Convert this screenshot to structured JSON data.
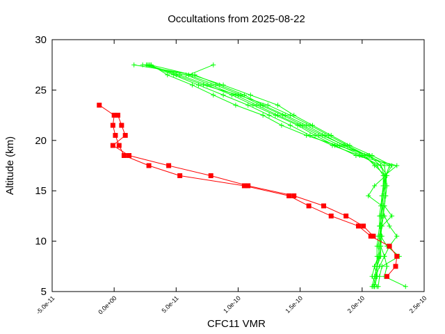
{
  "chart_data": {
    "type": "line",
    "title": "Occultations from 2025-08-22",
    "xlabel": "CFC11 VMR",
    "ylabel": "Altitude (km)",
    "xlim": [
      -5e-11,
      2.5e-10
    ],
    "ylim": [
      5,
      30
    ],
    "x_ticks": [
      -5e-11,
      0.0,
      5e-11,
      1e-10,
      1.5e-10,
      2e-10,
      2.5e-10
    ],
    "x_tick_labels": [
      "-5.0e-11",
      "0.0e+00",
      "5.0e-11",
      "1.0e-10",
      "1.5e-10",
      "2.0e-10",
      "2.5e-10"
    ],
    "y_ticks": [
      5,
      10,
      15,
      20,
      25,
      30
    ],
    "y_tick_labels": [
      "5",
      "10",
      "15",
      "20",
      "25",
      "30"
    ],
    "grid": false,
    "series": [
      {
        "color": "#00ff00",
        "marker": "plus",
        "profiles": [
          [
            [
              2.1e-10,
              5.5
            ],
            [
              2.12e-10,
              6.5
            ],
            [
              2.1e-10,
              7.5
            ],
            [
              2.14e-10,
              8.5
            ],
            [
              2.13e-10,
              9.5
            ],
            [
              2.14e-10,
              10.5
            ],
            [
              2.15e-10,
              11.5
            ],
            [
              2.15e-10,
              12.5
            ],
            [
              2.16e-10,
              13.5
            ],
            [
              2.16e-10,
              14.5
            ],
            [
              2.17e-10,
              15.5
            ],
            [
              2.18e-10,
              16.5
            ],
            [
              2.15e-10,
              17.5
            ],
            [
              2.05e-10,
              18.5
            ],
            [
              1.85e-10,
              19.5
            ],
            [
              1.7e-10,
              20.5
            ],
            [
              1.55e-10,
              21.5
            ],
            [
              1.38e-10,
              22.5
            ],
            [
              1.2e-10,
              23.5
            ],
            [
              1.05e-10,
              24.5
            ],
            [
              8.5e-11,
              25.5
            ],
            [
              6.5e-11,
              26.5
            ],
            [
              1.6e-11,
              27.5
            ]
          ],
          [
            [
              2.35e-10,
              5.5
            ],
            [
              2.18e-10,
              6.5
            ],
            [
              2.2e-10,
              7.5
            ],
            [
              2.18e-10,
              8.5
            ],
            [
              2.15e-10,
              9.5
            ],
            [
              2.16e-10,
              10.5
            ],
            [
              2.14e-10,
              11.5
            ],
            [
              2.14e-10,
              12.5
            ],
            [
              2.15e-10,
              13.5
            ],
            [
              2.16e-10,
              14.5
            ],
            [
              2.17e-10,
              15.5
            ],
            [
              2.17e-10,
              16.5
            ],
            [
              2.12e-10,
              17.5
            ],
            [
              2e-10,
              18.5
            ],
            [
              1.82e-10,
              19.5
            ],
            [
              1.65e-10,
              20.5
            ],
            [
              1.5e-10,
              21.5
            ],
            [
              1.32e-10,
              22.5
            ],
            [
              1.15e-10,
              23.5
            ],
            [
              9.8e-11,
              24.5
            ],
            [
              7.8e-11,
              25.5
            ],
            [
              5.8e-11,
              26.5
            ],
            [
              2.3e-11,
              27.5
            ]
          ],
          [
            [
              2.08e-10,
              5.5
            ],
            [
              2.1e-10,
              6.5
            ],
            [
              2.12e-10,
              7.5
            ],
            [
              2.12e-10,
              8.5
            ],
            [
              2.12e-10,
              9.5
            ],
            [
              2.13e-10,
              10.5
            ],
            [
              2.14e-10,
              11.5
            ],
            [
              2.16e-10,
              12.5
            ],
            [
              2.16e-10,
              13.5
            ],
            [
              2.16e-10,
              14.5
            ],
            [
              2.18e-10,
              15.5
            ],
            [
              2.18e-10,
              16.5
            ],
            [
              2.28e-10,
              17.5
            ],
            [
              1.95e-10,
              18.5
            ],
            [
              1.78e-10,
              19.5
            ],
            [
              1.62e-10,
              20.5
            ],
            [
              1.48e-10,
              21.5
            ],
            [
              1.3e-10,
              22.5
            ],
            [
              1.12e-10,
              23.5
            ],
            [
              9.5e-11,
              24.5
            ],
            [
              7.5e-11,
              25.5
            ],
            [
              5.3e-11,
              26.5
            ],
            [
              2.7e-11,
              27.5
            ]
          ],
          [
            [
              2.1e-10,
              5.5
            ],
            [
              2.12e-10,
              6.5
            ],
            [
              2.12e-10,
              7.5
            ],
            [
              2.15e-10,
              8.5
            ],
            [
              2.15e-10,
              9.5
            ],
            [
              2.14e-10,
              10.5
            ],
            [
              2.16e-10,
              11.5
            ],
            [
              2.24e-10,
              12.5
            ],
            [
              2.18e-10,
              13.5
            ],
            [
              2.19e-10,
              14.5
            ],
            [
              2.18e-10,
              15.5
            ],
            [
              2.2e-10,
              16.5
            ],
            [
              2.15e-10,
              17.5
            ],
            [
              1.98e-10,
              18.5
            ],
            [
              1.76e-10,
              19.5
            ],
            [
              1.58e-10,
              20.5
            ],
            [
              1.42e-10,
              21.5
            ],
            [
              1.25e-10,
              22.5
            ],
            [
              1.08e-10,
              23.5
            ],
            [
              8.8e-11,
              24.5
            ],
            [
              6.8e-11,
              25.5
            ],
            [
              4.8e-11,
              26.5
            ],
            [
              2.6e-11,
              27.5
            ]
          ],
          [
            [
              2.13e-10,
              5.5
            ],
            [
              2.14e-10,
              6.5
            ],
            [
              2.16e-10,
              7.5
            ],
            [
              2.3e-10,
              8.5
            ],
            [
              2.2e-10,
              9.5
            ],
            [
              2.15e-10,
              10.5
            ],
            [
              2.15e-10,
              11.5
            ],
            [
              2.17e-10,
              12.5
            ],
            [
              2.18e-10,
              13.5
            ],
            [
              2.19e-10,
              14.5
            ],
            [
              2.2e-10,
              15.5
            ],
            [
              2.19e-10,
              16.5
            ],
            [
              2.22e-10,
              17.5
            ],
            [
              2.04e-10,
              18.5
            ],
            [
              1.88e-10,
              19.5
            ],
            [
              1.73e-10,
              20.5
            ],
            [
              1.58e-10,
              21.5
            ],
            [
              1.42e-10,
              22.5
            ],
            [
              1.24e-10,
              23.5
            ],
            [
              1e-10,
              24.5
            ],
            [
              7.2e-11,
              25.5
            ],
            [
              5e-11,
              26.5
            ],
            [
              2.8e-11,
              27.5
            ]
          ],
          [
            [
              2.09e-10,
              5.5
            ],
            [
              2.11e-10,
              6.5
            ],
            [
              2.14e-10,
              7.5
            ],
            [
              2.18e-10,
              8.5
            ],
            [
              2.22e-10,
              9.5
            ],
            [
              2.28e-10,
              10.5
            ],
            [
              2.22e-10,
              11.5
            ],
            [
              2.18e-10,
              12.5
            ],
            [
              2.16e-10,
              13.5
            ],
            [
              2.05e-10,
              14.5
            ],
            [
              2.1e-10,
              15.5
            ],
            [
              2.19e-10,
              16.5
            ],
            [
              2.24e-10,
              17.5
            ],
            [
              2.08e-10,
              18.5
            ],
            [
              1.9e-10,
              19.5
            ],
            [
              1.75e-10,
              20.5
            ],
            [
              1.6e-10,
              21.5
            ],
            [
              1.45e-10,
              22.5
            ],
            [
              1.32e-10,
              23.5
            ],
            [
              1.1e-10,
              24.5
            ],
            [
              8.8e-11,
              25.5
            ],
            [
              6.3e-11,
              26.5
            ],
            [
              2.9e-11,
              27.5
            ]
          ],
          [
            [
              2.12e-10,
              5.5
            ],
            [
              2.08e-10,
              6.5
            ],
            [
              2.1e-10,
              7.5
            ],
            [
              2.13e-10,
              8.5
            ],
            [
              2.14e-10,
              9.5
            ],
            [
              2.15e-10,
              10.5
            ],
            [
              2.15e-10,
              11.5
            ],
            [
              2.15e-10,
              12.5
            ],
            [
              2.16e-10,
              13.5
            ],
            [
              2.17e-10,
              14.5
            ],
            [
              2.18e-10,
              15.5
            ],
            [
              2.19e-10,
              16.5
            ],
            [
              2.18e-10,
              17.5
            ],
            [
              2.06e-10,
              18.5
            ],
            [
              1.8e-10,
              19.5
            ],
            [
              1.55e-10,
              20.5
            ],
            [
              1.35e-10,
              21.5
            ],
            [
              1.2e-10,
              22.5
            ],
            [
              9.8e-11,
              23.5
            ],
            [
              8e-11,
              24.5
            ],
            [
              6.3e-11,
              25.5
            ],
            [
              4.3e-11,
              26.5
            ],
            [
              3e-11,
              27.5
            ]
          ],
          [
            [
              2.1e-10,
              5.5
            ],
            [
              2.12e-10,
              6.5
            ],
            [
              2.12e-10,
              7.5
            ],
            [
              2.14e-10,
              8.5
            ],
            [
              2.15e-10,
              9.5
            ],
            [
              2.15e-10,
              10.5
            ],
            [
              2.16e-10,
              11.5
            ],
            [
              2.17e-10,
              12.5
            ],
            [
              2.17e-10,
              13.5
            ],
            [
              2.18e-10,
              14.5
            ],
            [
              2.19e-10,
              15.5
            ],
            [
              2.19e-10,
              16.5
            ],
            [
              2.1e-10,
              17.5
            ],
            [
              2.02e-10,
              18.5
            ],
            [
              1.86e-10,
              19.5
            ],
            [
              1.68e-10,
              20.5
            ],
            [
              1.52e-10,
              21.5
            ],
            [
              1.36e-10,
              22.5
            ],
            [
              1.18e-10,
              23.5
            ],
            [
              1.02e-10,
              24.5
            ],
            [
              8.2e-11,
              25.5
            ],
            [
              6e-11,
              26.5
            ],
            [
              8e-11,
              27.5
            ]
          ]
        ]
      },
      {
        "color": "#ff0000",
        "marker": "square",
        "profiles": [
          [
            [
              2.2e-10,
              6.5
            ],
            [
              2.27e-10,
              7.5
            ],
            [
              2.28e-10,
              8.5
            ],
            [
              2.22e-10,
              9.5
            ],
            [
              2.07e-10,
              10.5
            ],
            [
              1.97e-10,
              11.5
            ],
            [
              1.75e-10,
              12.5
            ],
            [
              1.57e-10,
              13.5
            ],
            [
              1.41e-10,
              14.5
            ],
            [
              1.05e-10,
              15.5
            ],
            [
              5.3e-11,
              16.5
            ],
            [
              2.8e-11,
              17.5
            ],
            [
              8e-12,
              18.5
            ],
            [
              4e-12,
              19.5
            ],
            [
              1e-12,
              20.5
            ],
            [
              -1e-12,
              21.5
            ],
            [
              0.0,
              22.5
            ],
            [
              -1.2e-11,
              23.5
            ]
          ],
          [
            [
              2.09e-10,
              10.5
            ],
            [
              2.01e-10,
              11.5
            ],
            [
              1.87e-10,
              12.5
            ],
            [
              1.69e-10,
              13.5
            ],
            [
              1.45e-10,
              14.5
            ],
            [
              1.08e-10,
              15.5
            ],
            [
              7.8e-11,
              16.5
            ],
            [
              4.4e-11,
              17.5
            ],
            [
              1.2e-11,
              18.5
            ],
            [
              -1e-12,
              19.5
            ],
            [
              9e-12,
              20.5
            ],
            [
              6e-12,
              21.5
            ],
            [
              3e-12,
              22.5
            ]
          ]
        ]
      }
    ]
  }
}
